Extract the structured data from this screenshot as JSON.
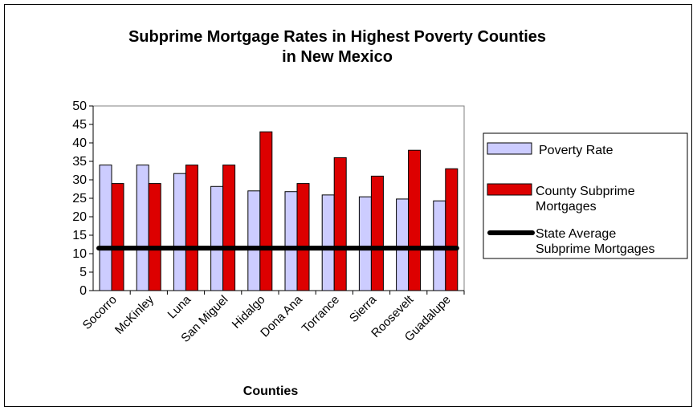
{
  "chart_data": {
    "type": "bar",
    "title_lines": [
      "Subprime Mortgage Rates in Highest Poverty Counties",
      "in New Mexico"
    ],
    "xlabel": "Counties",
    "ylabel": "",
    "ylim": [
      0,
      50
    ],
    "yticks": [
      0,
      5,
      10,
      15,
      20,
      25,
      30,
      35,
      40,
      45,
      50
    ],
    "categories": [
      "Socorro",
      "McKinley",
      "Luna",
      "San Miguel",
      "Hidalgo",
      "Dona Ana",
      "Torrance",
      "Sierra",
      "Roosevelt",
      "Guadalupe"
    ],
    "series": [
      {
        "name": "Poverty Rate",
        "type": "bar",
        "color": "#ccccff",
        "values": [
          34,
          34,
          31.7,
          28.2,
          27,
          26.8,
          25.9,
          25.4,
          24.8,
          24.3
        ]
      },
      {
        "name": "County Subprime Mortgages",
        "type": "bar",
        "color": "#dd0000",
        "values": [
          29,
          29,
          34,
          34,
          43,
          29,
          36,
          31,
          38,
          33
        ]
      },
      {
        "name": "State Average Subprime Mortgages",
        "type": "line",
        "color": "#000000",
        "value": 11.5
      }
    ],
    "grid": false,
    "legend_position": "right",
    "legend_labels": [
      [
        "Poverty Rate"
      ],
      [
        "County Subprime",
        "Mortgages"
      ],
      [
        "State Average",
        "Subprime Mortgages"
      ]
    ]
  }
}
